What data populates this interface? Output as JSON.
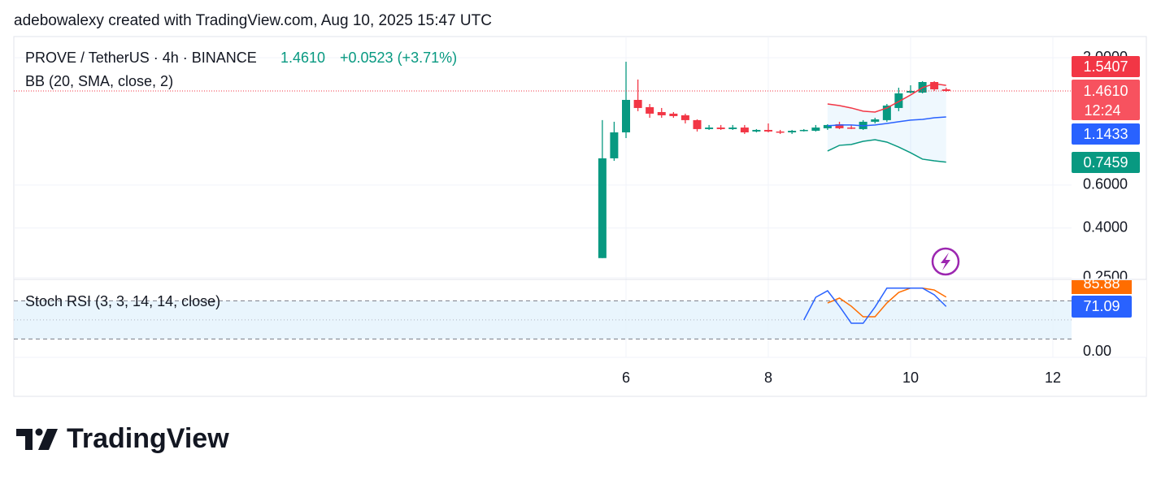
{
  "header": {
    "credit": "adebowalexy created with TradingView.com, Aug 10, 2025 15:47 UTC",
    "logo": "TradingView"
  },
  "chart_data": [
    {
      "type": "candlestick",
      "title": "PROVE / TetherUS · 4h · BINANCE",
      "price_label": "1.4610",
      "change_label": "+0.0523 (+3.71%)",
      "countdown": "12:24",
      "indicator": "BB (20, SMA, close, 2)",
      "x": [
        5.667,
        5.833,
        6,
        6.167,
        6.333,
        6.5,
        6.667,
        6.833,
        7,
        7.167,
        7.333,
        7.5,
        7.667,
        7.833,
        8,
        8.167,
        8.333,
        8.5,
        8.667,
        8.833,
        9,
        9.167,
        9.333,
        9.5,
        9.667,
        9.833,
        10,
        10.167,
        10.333,
        10.5
      ],
      "open": [
        0.301,
        0.773,
        0.988,
        1.343,
        1.254,
        1.197,
        1.179,
        1.161,
        1.109,
        1.019,
        1.034,
        1.019,
        1.034,
        0.996,
        1.011,
        0.996,
        0.988,
        1.003,
        1.003,
        1.027,
        1.067,
        1.034,
        1.019,
        1.092,
        1.109,
        1.244,
        1.439,
        1.439,
        1.59,
        1.484
      ],
      "high": [
        1.109,
        1.092,
        1.926,
        1.628,
        1.292,
        1.244,
        1.197,
        1.179,
        1.117,
        1.059,
        1.059,
        1.059,
        1.059,
        1.019,
        1.075,
        1.011,
        1.011,
        1.019,
        1.059,
        1.067,
        1.092,
        1.059,
        1.109,
        1.134,
        1.292,
        1.507,
        1.542,
        1.603,
        1.603,
        1.507
      ],
      "low": [
        0.301,
        0.755,
        0.936,
        1.207,
        1.134,
        1.134,
        1.134,
        1.075,
        0.996,
        1.011,
        1.011,
        1.011,
        0.973,
        0.988,
        0.988,
        0.973,
        0.973,
        0.996,
        0.996,
        1.011,
        1.019,
        1.019,
        1.011,
        1.075,
        1.092,
        1.207,
        1.428,
        1.428,
        1.461,
        1.45
      ],
      "close": [
        0.773,
        0.988,
        1.343,
        1.244,
        1.179,
        1.161,
        1.152,
        1.109,
        1.019,
        1.034,
        1.019,
        1.034,
        0.988,
        1.011,
        0.996,
        0.988,
        1.003,
        1.011,
        1.034,
        1.059,
        1.027,
        1.027,
        1.092,
        1.117,
        1.273,
        1.428,
        1.461,
        1.59,
        1.484,
        1.461
      ],
      "up_color": "#089981",
      "down_color": "#f23645",
      "series": [
        {
          "color": "#f23645",
          "values": [
            null,
            null,
            null,
            null,
            null,
            null,
            null,
            null,
            null,
            null,
            null,
            null,
            null,
            null,
            null,
            null,
            null,
            null,
            null,
            1.292,
            1.273,
            1.244,
            1.207,
            1.197,
            1.244,
            1.322,
            1.407,
            1.507,
            1.566,
            1.5407
          ]
        },
        {
          "color": "#2962ff",
          "values": [
            null,
            null,
            null,
            null,
            null,
            null,
            null,
            null,
            null,
            null,
            null,
            null,
            null,
            null,
            null,
            null,
            null,
            null,
            null,
            1.051,
            1.059,
            1.059,
            1.051,
            1.059,
            1.075,
            1.092,
            1.109,
            1.117,
            1.134,
            1.1433
          ]
        },
        {
          "color": "#089981",
          "values": [
            null,
            null,
            null,
            null,
            null,
            null,
            null,
            null,
            null,
            null,
            null,
            null,
            null,
            null,
            null,
            null,
            null,
            null,
            null,
            0.828,
            0.874,
            0.881,
            0.908,
            0.922,
            0.901,
            0.86,
            0.815,
            0.767,
            0.755,
            0.7459
          ]
        }
      ],
      "log_scale": true,
      "xlim": [
        -2.606,
        12.263
      ],
      "xticks": [
        6,
        8,
        10,
        12
      ],
      "ylim": [
        0.248,
        2.444
      ],
      "yticks": [
        {
          "value": 2,
          "label": "2.0000"
        },
        {
          "value": 0.6,
          "label": "0.6000"
        },
        {
          "value": 0.4,
          "label": "0.4000"
        },
        {
          "value": 0.25,
          "label": "0.2500"
        }
      ],
      "grid": true
    },
    {
      "type": "line",
      "title": "Stoch RSI (3, 3, 14, 14, close)",
      "series": [
        {
          "color": "#ff6d00",
          "values": [
            null,
            null,
            null,
            null,
            null,
            null,
            null,
            null,
            null,
            null,
            null,
            null,
            null,
            null,
            null,
            null,
            null,
            null,
            null,
            76.6,
            84.3,
            71.5,
            54.9,
            54.9,
            76.6,
            93.2,
            100,
            100,
            97,
            85.88
          ]
        },
        {
          "color": "#2962ff",
          "values": [
            null,
            null,
            null,
            null,
            null,
            null,
            null,
            null,
            null,
            null,
            null,
            null,
            null,
            null,
            null,
            null,
            null,
            49.8,
            85.6,
            95.8,
            71.5,
            44.7,
            44.7,
            70.2,
            100,
            100,
            100,
            100,
            89.4,
            71.09
          ]
        }
      ],
      "ylim": [
        -8.9,
        112.4
      ],
      "yticks": [
        {
          "value": 0,
          "label": "0.00"
        }
      ],
      "bands": [
        20,
        80
      ],
      "midline": 50,
      "band_color": "#e3f2fd"
    }
  ]
}
